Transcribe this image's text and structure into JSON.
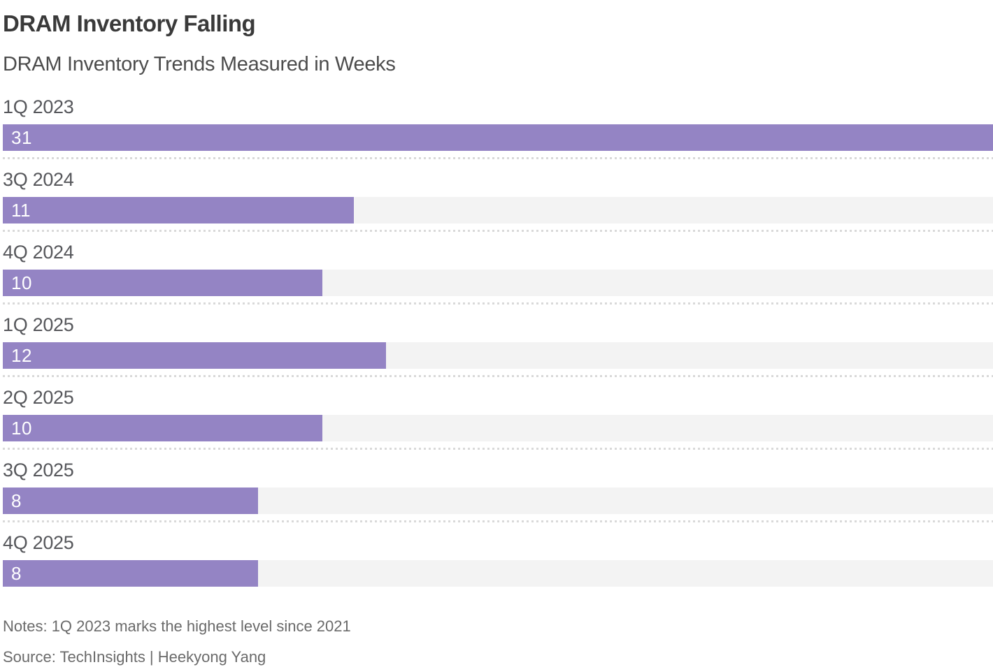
{
  "header": {
    "title": "DRAM Inventory Falling",
    "subtitle": "DRAM Inventory Trends Measured in Weeks"
  },
  "chart_data": {
    "type": "bar",
    "orientation": "horizontal",
    "title": "DRAM Inventory Falling",
    "subtitle": "DRAM Inventory Trends Measured in Weeks",
    "unit": "weeks",
    "categories": [
      "1Q 2023",
      "3Q 2024",
      "4Q 2024",
      "1Q 2025",
      "2Q 2025",
      "3Q 2025",
      "4Q 2025"
    ],
    "values": [
      31,
      11,
      10,
      12,
      10,
      8,
      8
    ],
    "xlim": [
      0,
      31
    ],
    "value_labels": "inside-left",
    "grid": "off",
    "legend": "none",
    "colors": {
      "bar": "#9484c4",
      "track": "#f3f3f3",
      "value_label": "#ffffff",
      "separator_dots": "#d9d9d9"
    }
  },
  "footer": {
    "notes": "Notes: 1Q 2023 marks the highest level since 2021",
    "source": "Source: TechInsights | Heekyong Yang"
  }
}
